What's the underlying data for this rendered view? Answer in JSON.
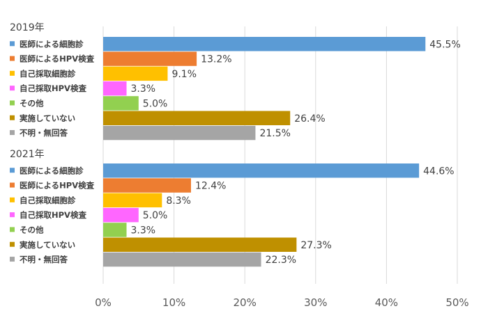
{
  "chart_data": {
    "type": "bar",
    "orientation": "horizontal",
    "xlim": [
      0,
      50
    ],
    "x_ticks": [
      "0%",
      "10%",
      "20%",
      "30%",
      "40%",
      "50%"
    ],
    "grid": true,
    "groups": [
      {
        "title": "2019年",
        "items": [
          {
            "label": "医師による細胞診",
            "value": 45.5,
            "display": "45.5%",
            "color": "#5b9bd5"
          },
          {
            "label": "医師によるHPV検査",
            "value": 13.2,
            "display": "13.2%",
            "color": "#ed7d31"
          },
          {
            "label": "自己採取細胞診",
            "value": 9.1,
            "display": "9.1%",
            "color": "#ffc000"
          },
          {
            "label": "自己採取HPV検査",
            "value": 3.3,
            "display": "3.3%",
            "color": "#ff66ff"
          },
          {
            "label": "その他",
            "value": 5.0,
            "display": "5.0%",
            "color": "#92d050"
          },
          {
            "label": "実施していない",
            "value": 26.4,
            "display": "26.4%",
            "color": "#bf9000"
          },
          {
            "label": "不明・無回答",
            "value": 21.5,
            "display": "21.5%",
            "color": "#a5a5a5"
          }
        ]
      },
      {
        "title": "2021年",
        "items": [
          {
            "label": "医師による細胞診",
            "value": 44.6,
            "display": "44.6%",
            "color": "#5b9bd5"
          },
          {
            "label": "医師によるHPV検査",
            "value": 12.4,
            "display": "12.4%",
            "color": "#ed7d31"
          },
          {
            "label": "自己採取細胞診",
            "value": 8.3,
            "display": "8.3%",
            "color": "#ffc000"
          },
          {
            "label": "自己採取HPV検査",
            "value": 5.0,
            "display": "5.0%",
            "color": "#ff66ff"
          },
          {
            "label": "その他",
            "value": 3.3,
            "display": "3.3%",
            "color": "#92d050"
          },
          {
            "label": "実施していない",
            "value": 27.3,
            "display": "27.3%",
            "color": "#bf9000"
          },
          {
            "label": "不明・無回答",
            "value": 22.3,
            "display": "22.3%",
            "color": "#a5a5a5"
          }
        ]
      }
    ]
  }
}
